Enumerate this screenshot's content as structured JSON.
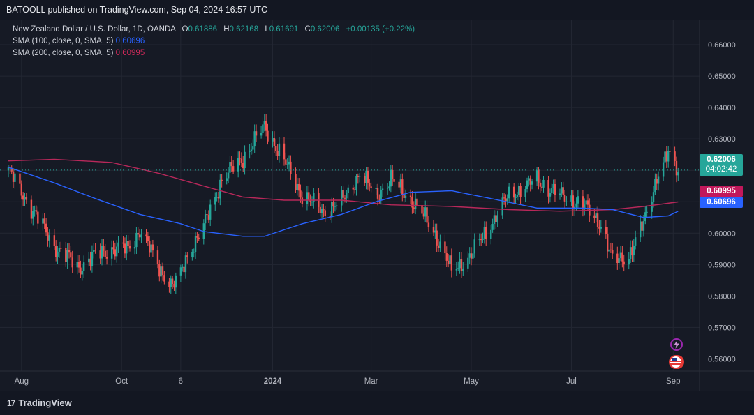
{
  "header": {
    "publisher_line": "BATOOLL published on TradingView.com, Sep 04, 2024 16:57 UTC"
  },
  "legend": {
    "symbol": "New Zealand Dollar / U.S. Dollar, 1D, OANDA",
    "open_label": "O",
    "open": "0.61886",
    "high_label": "H",
    "high": "0.62168",
    "low_label": "L",
    "low": "0.61691",
    "close_label": "C",
    "close": "0.62006",
    "change": "+0.00135 (+0.22%)",
    "sma100_label": "SMA (100, close, 0, SMA, 5)",
    "sma100_value": "0.60696",
    "sma200_label": "SMA (200, close, 0, SMA, 5)",
    "sma200_value": "0.60995"
  },
  "price_tags": {
    "last_price": "0.62006",
    "countdown": "04:02:42",
    "sma200": "0.60995",
    "sma100": "0.60696"
  },
  "footer": {
    "brand": "TradingView",
    "logo": "17"
  },
  "colors": {
    "up": "#26a69a",
    "down": "#ef5350",
    "sma100": "#2962ff",
    "sma200": "#b8285a",
    "background": "#161a25"
  },
  "chart_data": {
    "type": "line",
    "title": "New Zealand Dollar / U.S. Dollar, 1D, OANDA",
    "ylim": [
      0.553,
      0.664
    ],
    "y_ticks": [
      "0.66000",
      "0.65000",
      "0.64000",
      "0.63000",
      "0.62000",
      "0.61000",
      "0.60000",
      "0.59000",
      "0.58000",
      "0.57000",
      "0.56000"
    ],
    "y_tick_values": [
      0.66,
      0.65,
      0.64,
      0.63,
      0.62,
      0.61,
      0.6,
      0.59,
      0.58,
      0.57,
      0.56
    ],
    "x_ticks": [
      "Aug",
      "Oct",
      "6",
      "2024",
      "Mar",
      "May",
      "Jul",
      "Sep"
    ],
    "x_tick_dates": [
      "2023-08-01",
      "2023-10-01",
      "2023-11-06",
      "2024-01-01",
      "2024-03-01",
      "2024-05-01",
      "2024-07-01",
      "2024-09-01"
    ],
    "x_range": [
      "2023-07-24",
      "2024-09-06"
    ],
    "last_price": 0.62006,
    "series": [
      {
        "name": "NZD/USD close",
        "points": [
          [
            "2023-07-24",
            0.62
          ],
          [
            "2023-08-07",
            0.608
          ],
          [
            "2023-08-21",
            0.596
          ],
          [
            "2023-09-05",
            0.589
          ],
          [
            "2023-09-15",
            0.593
          ],
          [
            "2023-09-25",
            0.595
          ],
          [
            "2023-10-05",
            0.595
          ],
          [
            "2023-10-12",
            0.601
          ],
          [
            "2023-10-24",
            0.589
          ],
          [
            "2023-11-01",
            0.583
          ],
          [
            "2023-11-06",
            0.587
          ],
          [
            "2023-11-10",
            0.593
          ],
          [
            "2023-11-20",
            0.602
          ],
          [
            "2023-12-01",
            0.617
          ],
          [
            "2023-12-14",
            0.624
          ],
          [
            "2023-12-27",
            0.634
          ],
          [
            "2024-01-08",
            0.623
          ],
          [
            "2024-01-19",
            0.612
          ],
          [
            "2024-02-01",
            0.607
          ],
          [
            "2024-02-12",
            0.61
          ],
          [
            "2024-02-23",
            0.619
          ],
          [
            "2024-03-04",
            0.612
          ],
          [
            "2024-03-13",
            0.617
          ],
          [
            "2024-03-25",
            0.611
          ],
          [
            "2024-04-08",
            0.601
          ],
          [
            "2024-04-19",
            0.588
          ],
          [
            "2024-05-01",
            0.593
          ],
          [
            "2024-05-13",
            0.603
          ],
          [
            "2024-05-24",
            0.612
          ],
          [
            "2024-06-10",
            0.617
          ],
          [
            "2024-06-24",
            0.612
          ],
          [
            "2024-07-08",
            0.609
          ],
          [
            "2024-07-19",
            0.603
          ],
          [
            "2024-07-26",
            0.591
          ],
          [
            "2024-08-05",
            0.593
          ],
          [
            "2024-08-14",
            0.603
          ],
          [
            "2024-08-22",
            0.618
          ],
          [
            "2024-08-29",
            0.625
          ],
          [
            "2024-09-04",
            0.62006
          ]
        ]
      },
      {
        "name": "SMA (100, close, 0, SMA, 5)",
        "points": [
          [
            "2023-07-24",
            0.621
          ],
          [
            "2023-08-21",
            0.616
          ],
          [
            "2023-09-15",
            0.611
          ],
          [
            "2023-10-12",
            0.606
          ],
          [
            "2023-11-06",
            0.603
          ],
          [
            "2023-11-20",
            0.6005
          ],
          [
            "2023-12-14",
            0.599
          ],
          [
            "2023-12-27",
            0.599
          ],
          [
            "2024-01-19",
            0.603
          ],
          [
            "2024-02-12",
            0.606
          ],
          [
            "2024-03-04",
            0.61
          ],
          [
            "2024-03-25",
            0.613
          ],
          [
            "2024-04-19",
            0.6135
          ],
          [
            "2024-05-13",
            0.611
          ],
          [
            "2024-06-10",
            0.608
          ],
          [
            "2024-07-08",
            0.608
          ],
          [
            "2024-07-26",
            0.6075
          ],
          [
            "2024-08-14",
            0.605
          ],
          [
            "2024-08-29",
            0.6055
          ],
          [
            "2024-09-04",
            0.60696
          ]
        ]
      },
      {
        "name": "SMA (200, close, 0, SMA, 5)",
        "points": [
          [
            "2023-07-24",
            0.623
          ],
          [
            "2023-08-21",
            0.6235
          ],
          [
            "2023-09-25",
            0.6225
          ],
          [
            "2023-10-24",
            0.619
          ],
          [
            "2023-11-20",
            0.615
          ],
          [
            "2023-12-14",
            0.6115
          ],
          [
            "2024-01-08",
            0.6105
          ],
          [
            "2024-02-12",
            0.6105
          ],
          [
            "2024-03-13",
            0.609
          ],
          [
            "2024-04-19",
            0.6085
          ],
          [
            "2024-05-24",
            0.6075
          ],
          [
            "2024-06-24",
            0.607
          ],
          [
            "2024-07-26",
            0.6075
          ],
          [
            "2024-08-14",
            0.6085
          ],
          [
            "2024-09-04",
            0.60995
          ]
        ]
      }
    ]
  }
}
